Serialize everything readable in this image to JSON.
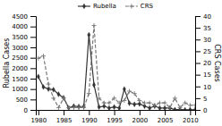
{
  "chart_data": {
    "type": "line",
    "x": [
      1980,
      1981,
      1982,
      1983,
      1984,
      1985,
      1986,
      1987,
      1988,
      1989,
      1990,
      1991,
      1992,
      1993,
      1994,
      1995,
      1996,
      1997,
      1998,
      1999,
      2000,
      2001,
      2002,
      2003,
      2004,
      2005,
      2006,
      2007,
      2008,
      2009,
      2010,
      2011
    ],
    "xlim": [
      1979.5,
      2011
    ],
    "xticks": [
      1980,
      1985,
      1990,
      1995,
      2000,
      2005,
      2010
    ],
    "ylim": [
      0,
      4500
    ],
    "yticks": [
      0,
      500,
      1000,
      1500,
      2000,
      2500,
      3000,
      3500,
      4000,
      4500
    ],
    "y2lim": [
      0,
      40
    ],
    "y2ticks": [
      0,
      5,
      10,
      15,
      20,
      25,
      30,
      35,
      40
    ],
    "ylabel": "Rubella Cases",
    "y2label": "CRS Cases",
    "legend": "top",
    "grid": false,
    "series": [
      {
        "name": "Rubella",
        "color": "#333333",
        "marker": "diamond",
        "line_style": "solid",
        "values": [
          1600,
          1100,
          1000,
          970,
          750,
          580,
          100,
          180,
          160,
          170,
          3600,
          1200,
          140,
          180,
          90,
          140,
          90,
          1000,
          320,
          270,
          290,
          180,
          90,
          180,
          90,
          90,
          90,
          8,
          18,
          3,
          8,
          4
        ]
      },
      {
        "name": "CRS",
        "color": "#777777",
        "marker": "plus",
        "line_style": "dashed",
        "axis": "y2",
        "values": [
          22,
          23,
          11,
          5,
          1,
          5,
          1,
          1,
          1,
          1,
          7,
          36,
          5,
          3,
          3,
          5,
          3,
          4,
          8,
          7,
          4,
          3,
          3,
          2,
          3,
          3,
          1,
          5,
          1,
          3,
          2,
          2
        ]
      }
    ]
  }
}
